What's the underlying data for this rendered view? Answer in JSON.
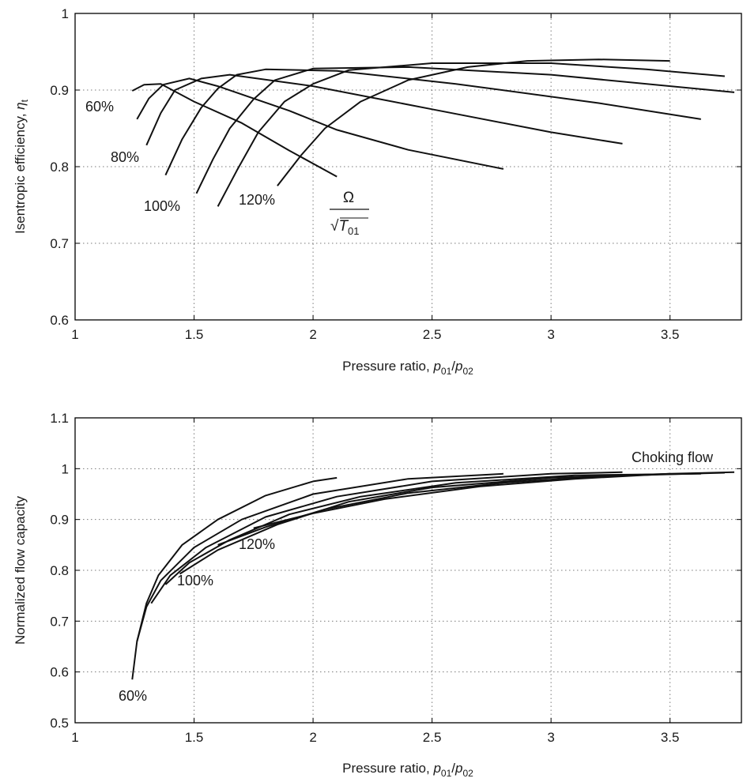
{
  "chart_data": [
    {
      "type": "line",
      "title": "",
      "xlabel": {
        "main": "Pressure ratio, ",
        "p1": "p",
        "sub1": "01",
        "slash": "/",
        "p2": "p",
        "sub2": "02"
      },
      "ylabel": {
        "main": "Isentropic efficiency, ",
        "sym": "η",
        "sub": "t"
      },
      "xlim": [
        1,
        3.8
      ],
      "ylim": [
        0.6,
        1
      ],
      "xticks": [
        "1",
        "1.5",
        "2",
        "2.5",
        "3",
        "3.5"
      ],
      "xtick_values": [
        1,
        1.5,
        2,
        2.5,
        3,
        3.5
      ],
      "yticks": [
        "0.6",
        "0.7",
        "0.8",
        "0.9",
        "1"
      ],
      "ytick_values": [
        0.6,
        0.7,
        0.8,
        0.9,
        1.0
      ],
      "grid": true,
      "annotations": {
        "speed_60": "60%",
        "speed_80": "80%",
        "speed_100": "100%",
        "speed_120": "120%",
        "param_num": "Ω",
        "param_den_root": "√",
        "param_den_T": "T",
        "param_den_sub": "01"
      },
      "series": [
        {
          "values": [
            [
              1.24,
              0.899
            ],
            [
              1.29,
              0.907
            ],
            [
              1.36,
              0.908
            ],
            [
              1.5,
              0.885
            ],
            [
              1.7,
              0.857
            ],
            [
              1.9,
              0.821
            ],
            [
              2.1,
              0.787
            ]
          ]
        },
        {
          "values": [
            [
              1.26,
              0.862
            ],
            [
              1.31,
              0.889
            ],
            [
              1.37,
              0.907
            ],
            [
              1.48,
              0.915
            ],
            [
              1.6,
              0.905
            ],
            [
              1.9,
              0.873
            ],
            [
              2.1,
              0.848
            ],
            [
              2.4,
              0.822
            ],
            [
              2.8,
              0.797
            ]
          ]
        },
        {
          "values": [
            [
              1.3,
              0.828
            ],
            [
              1.36,
              0.87
            ],
            [
              1.42,
              0.9
            ],
            [
              1.53,
              0.915
            ],
            [
              1.65,
              0.92
            ],
            [
              2.0,
              0.905
            ],
            [
              2.5,
              0.875
            ],
            [
              3.0,
              0.845
            ],
            [
              3.3,
              0.83
            ]
          ]
        },
        {
          "values": [
            [
              1.38,
              0.789
            ],
            [
              1.45,
              0.836
            ],
            [
              1.53,
              0.877
            ],
            [
              1.6,
              0.902
            ],
            [
              1.68,
              0.92
            ],
            [
              1.8,
              0.927
            ],
            [
              2.1,
              0.925
            ],
            [
              2.6,
              0.908
            ],
            [
              3.2,
              0.883
            ],
            [
              3.63,
              0.862
            ]
          ]
        },
        {
          "values": [
            [
              1.51,
              0.765
            ],
            [
              1.58,
              0.81
            ],
            [
              1.65,
              0.85
            ],
            [
              1.75,
              0.888
            ],
            [
              1.84,
              0.913
            ],
            [
              2.0,
              0.928
            ],
            [
              2.4,
              0.93
            ],
            [
              3.0,
              0.92
            ],
            [
              3.77,
              0.897
            ]
          ]
        },
        {
          "values": [
            [
              1.6,
              0.748
            ],
            [
              1.68,
              0.795
            ],
            [
              1.77,
              0.845
            ],
            [
              1.88,
              0.885
            ],
            [
              2.0,
              0.908
            ],
            [
              2.15,
              0.926
            ],
            [
              2.5,
              0.935
            ],
            [
              3.0,
              0.935
            ],
            [
              3.4,
              0.927
            ],
            [
              3.73,
              0.918
            ]
          ]
        },
        {
          "values": [
            [
              1.85,
              0.775
            ],
            [
              1.95,
              0.815
            ],
            [
              2.05,
              0.85
            ],
            [
              2.2,
              0.885
            ],
            [
              2.4,
              0.913
            ],
            [
              2.65,
              0.93
            ],
            [
              2.9,
              0.938
            ],
            [
              3.2,
              0.94
            ],
            [
              3.5,
              0.938
            ]
          ]
        }
      ]
    },
    {
      "type": "line",
      "title": "",
      "xlabel": {
        "main": "Pressure ratio, ",
        "p1": "p",
        "sub1": "01",
        "slash": "/",
        "p2": "p",
        "sub2": "02"
      },
      "ylabel": {
        "main": "Normalized flow capacity",
        "sym": "",
        "sub": ""
      },
      "xlim": [
        1,
        3.8
      ],
      "ylim": [
        0.5,
        1.1
      ],
      "xticks": [
        "1",
        "1.5",
        "2",
        "2.5",
        "3",
        "3.5"
      ],
      "xtick_values": [
        1,
        1.5,
        2,
        2.5,
        3,
        3.5
      ],
      "yticks": [
        "0.5",
        "0.6",
        "0.7",
        "0.8",
        "0.9",
        "1",
        "1.1"
      ],
      "ytick_values": [
        0.5,
        0.6,
        0.7,
        0.8,
        0.9,
        1.0,
        1.1
      ],
      "grid": true,
      "annotations": {
        "choking": "Choking flow",
        "speed_60": "60%",
        "speed_100": "100%",
        "speed_120": "120%"
      },
      "series": [
        {
          "values": [
            [
              1.24,
              0.585
            ],
            [
              1.26,
              0.66
            ],
            [
              1.3,
              0.735
            ],
            [
              1.35,
              0.79
            ],
            [
              1.45,
              0.85
            ],
            [
              1.6,
              0.9
            ],
            [
              1.8,
              0.947
            ],
            [
              2.0,
              0.975
            ],
            [
              2.1,
              0.982
            ]
          ]
        },
        {
          "values": [
            [
              1.26,
              0.66
            ],
            [
              1.3,
              0.728
            ],
            [
              1.36,
              0.78
            ],
            [
              1.5,
              0.845
            ],
            [
              1.7,
              0.9
            ],
            [
              2.0,
              0.95
            ],
            [
              2.4,
              0.98
            ],
            [
              2.8,
              0.99
            ]
          ]
        },
        {
          "values": [
            [
              1.32,
              0.735
            ],
            [
              1.4,
              0.79
            ],
            [
              1.55,
              0.845
            ],
            [
              1.8,
              0.905
            ],
            [
              2.1,
              0.945
            ],
            [
              2.5,
              0.975
            ],
            [
              3.0,
              0.99
            ],
            [
              3.3,
              0.993
            ]
          ]
        },
        {
          "values": [
            [
              1.38,
              0.772
            ],
            [
              1.48,
              0.815
            ],
            [
              1.65,
              0.86
            ],
            [
              1.9,
              0.91
            ],
            [
              2.2,
              0.945
            ],
            [
              2.6,
              0.972
            ],
            [
              3.1,
              0.987
            ],
            [
              3.63,
              0.99
            ]
          ]
        },
        {
          "values": [
            [
              1.44,
              0.793
            ],
            [
              1.6,
              0.84
            ],
            [
              1.85,
              0.89
            ],
            [
              2.15,
              0.935
            ],
            [
              2.5,
              0.963
            ],
            [
              3.0,
              0.982
            ],
            [
              3.5,
              0.99
            ],
            [
              3.77,
              0.993
            ]
          ]
        },
        {
          "values": [
            [
              1.6,
              0.85
            ],
            [
              1.8,
              0.885
            ],
            [
              2.05,
              0.92
            ],
            [
              2.4,
              0.952
            ],
            [
              2.8,
              0.972
            ],
            [
              3.2,
              0.985
            ],
            [
              3.73,
              0.992
            ]
          ]
        },
        {
          "values": [
            [
              1.75,
              0.883
            ],
            [
              2.0,
              0.912
            ],
            [
              2.3,
              0.94
            ],
            [
              2.7,
              0.965
            ],
            [
              3.1,
              0.98
            ],
            [
              3.5,
              0.99
            ]
          ]
        }
      ]
    }
  ]
}
